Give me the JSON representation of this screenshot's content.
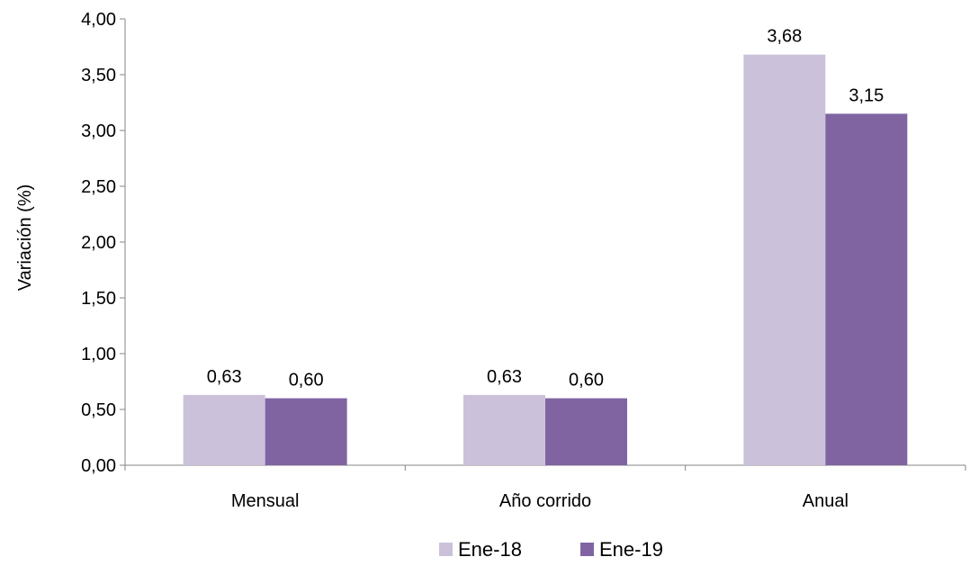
{
  "chart_data": {
    "type": "bar",
    "title": "",
    "xlabel": "",
    "ylabel": "Variación (%)",
    "categories": [
      "Mensual",
      "Año corrido",
      "Anual"
    ],
    "series": [
      {
        "name": "Ene-18",
        "values": [
          0.63,
          0.63,
          3.68
        ],
        "labels": [
          "0,63",
          "0,63",
          "3,68"
        ],
        "color": "#CCC1DA"
      },
      {
        "name": "Ene-19",
        "values": [
          0.6,
          0.6,
          3.15
        ],
        "labels": [
          "0,60",
          "0,60",
          "3,15"
        ],
        "color": "#8064A2"
      }
    ],
    "ylim": [
      0,
      4
    ],
    "ytick_labels": [
      "0,00",
      "0,50",
      "1,00",
      "1,50",
      "2,00",
      "2,50",
      "3,00",
      "3,50",
      "4,00"
    ],
    "ytick_values": [
      0,
      0.5,
      1,
      1.5,
      2,
      2.5,
      3,
      3.5,
      4
    ],
    "grid": false,
    "legend_position": "bottom"
  }
}
